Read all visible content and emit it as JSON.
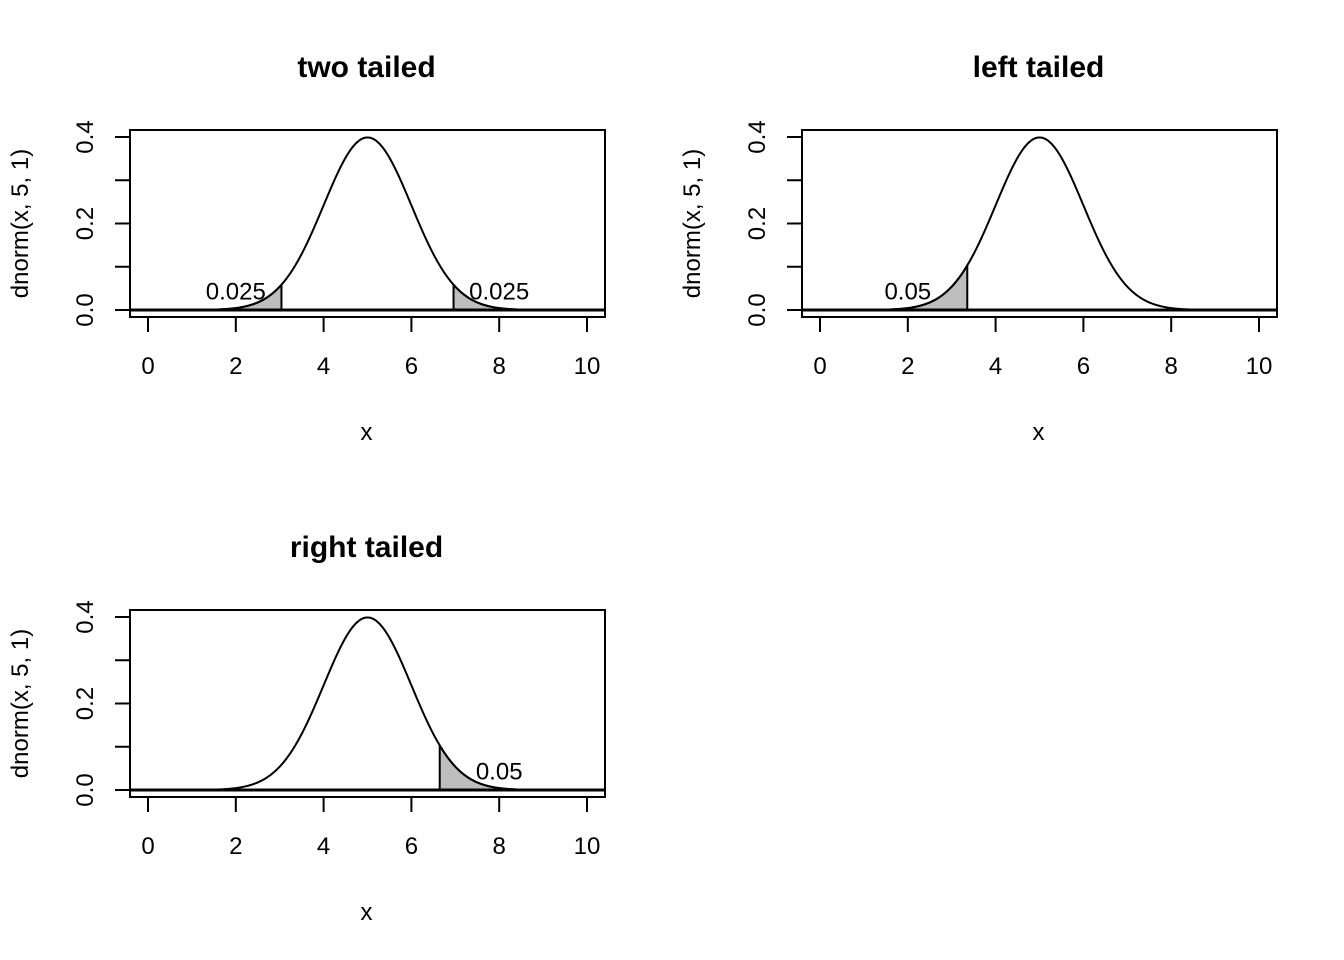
{
  "chart_data": [
    {
      "type": "area",
      "title": "two tailed",
      "xlabel": "x",
      "ylabel": "dnorm(x, 5, 1)",
      "xlim": [
        0,
        10
      ],
      "ylim": [
        0,
        0.4
      ],
      "xticks": [
        "0",
        "2",
        "4",
        "6",
        "8",
        "10"
      ],
      "yticks": [
        "0.0",
        "0.2",
        "0.4"
      ],
      "mean": 5,
      "sd": 1,
      "shaded": [
        [
          0,
          3.04
        ],
        [
          6.96,
          10
        ]
      ],
      "annotations": [
        {
          "text": "0.025",
          "x": 2.0,
          "y": 0.045
        },
        {
          "text": "0.025",
          "x": 8.0,
          "y": 0.045
        }
      ]
    },
    {
      "type": "area",
      "title": "left tailed",
      "xlabel": "x",
      "ylabel": "dnorm(x, 5, 1)",
      "xlim": [
        0,
        10
      ],
      "ylim": [
        0,
        0.4
      ],
      "xticks": [
        "0",
        "2",
        "4",
        "6",
        "8",
        "10"
      ],
      "yticks": [
        "0.0",
        "0.2",
        "0.4"
      ],
      "mean": 5,
      "sd": 1,
      "shaded": [
        [
          0,
          3.355
        ]
      ],
      "annotations": [
        {
          "text": "0.05",
          "x": 2.0,
          "y": 0.045
        }
      ]
    },
    {
      "type": "area",
      "title": "right tailed",
      "xlabel": "x",
      "ylabel": "dnorm(x, 5, 1)",
      "xlim": [
        0,
        10
      ],
      "ylim": [
        0,
        0.4
      ],
      "xticks": [
        "0",
        "2",
        "4",
        "6",
        "8",
        "10"
      ],
      "yticks": [
        "0.0",
        "0.2",
        "0.4"
      ],
      "mean": 5,
      "sd": 1,
      "shaded": [
        [
          6.645,
          10
        ]
      ],
      "annotations": [
        {
          "text": "0.05",
          "x": 8.0,
          "y": 0.045
        }
      ]
    }
  ],
  "colors": {
    "fill": "#bebebe",
    "line": "#000000"
  }
}
